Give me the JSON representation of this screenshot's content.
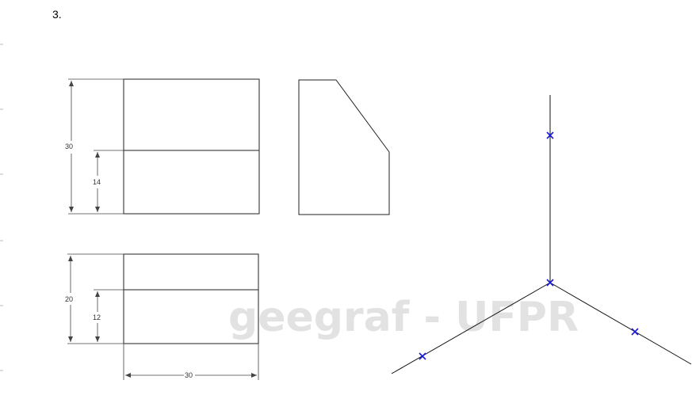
{
  "exercise_number": "3.",
  "watermark": "geegraf - UFPR",
  "dimensions": {
    "front_height_total": "30",
    "front_height_lower": "14",
    "top_depth_total": "20",
    "top_depth_lower": "12",
    "top_width": "30"
  },
  "colors": {
    "line": "#222222",
    "marker": "#1a1ad6",
    "watermark": "#d9d9d9"
  }
}
